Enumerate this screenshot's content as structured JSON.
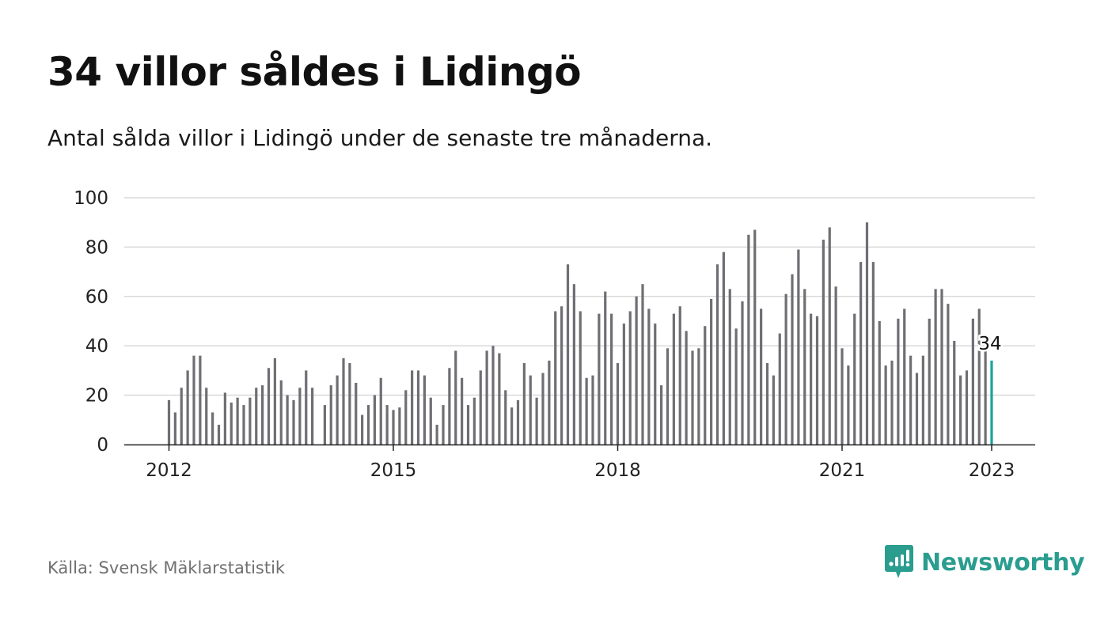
{
  "header": {
    "title": "34 villor såldes i Lidingö",
    "subtitle": "Antal sålda villor i Lidingö under de senaste tre månaderna."
  },
  "footer": {
    "source": "Källa: Svensk Mäklarstatistik",
    "brand": "Newsworthy"
  },
  "colors": {
    "bar": "#6e6e73",
    "highlight": "#1aa39b",
    "grid": "#d9d9d9",
    "brand": "#2a9d8f"
  },
  "chart_data": {
    "type": "bar",
    "y_ticks": [
      "0",
      "20",
      "40",
      "60",
      "80",
      "100"
    ],
    "ylim": [
      0,
      100
    ],
    "x_ticks": [
      "2012",
      "2015",
      "2018",
      "2021",
      "2023"
    ],
    "x_tick_months": [
      0,
      36,
      72,
      108,
      132
    ],
    "start": "2012-01",
    "end": "2023-01",
    "grid": true,
    "annotation": {
      "label": "34",
      "month": 132,
      "value": 34
    },
    "values": [
      18,
      13,
      23,
      30,
      36,
      36,
      23,
      13,
      8,
      21,
      17,
      19,
      16,
      19,
      23,
      24,
      31,
      35,
      26,
      20,
      18,
      23,
      30,
      23,
      null,
      16,
      24,
      28,
      35,
      33,
      25,
      12,
      16,
      20,
      27,
      16,
      14,
      15,
      22,
      30,
      30,
      28,
      19,
      8,
      16,
      31,
      38,
      27,
      16,
      19,
      30,
      38,
      40,
      37,
      22,
      15,
      18,
      33,
      28,
      19,
      29,
      34,
      54,
      56,
      73,
      65,
      54,
      27,
      28,
      53,
      62,
      53,
      33,
      49,
      54,
      60,
      65,
      55,
      49,
      24,
      39,
      53,
      56,
      46,
      38,
      39,
      48,
      59,
      73,
      78,
      63,
      47,
      58,
      85,
      87,
      55,
      33,
      28,
      45,
      61,
      69,
      79,
      63,
      53,
      52,
      83,
      88,
      64,
      39,
      32,
      53,
      74,
      90,
      74,
      50,
      32,
      34,
      51,
      55,
      36,
      29,
      36,
      51,
      63,
      63,
      57,
      42,
      28,
      30,
      51,
      55,
      38,
      34
    ]
  }
}
